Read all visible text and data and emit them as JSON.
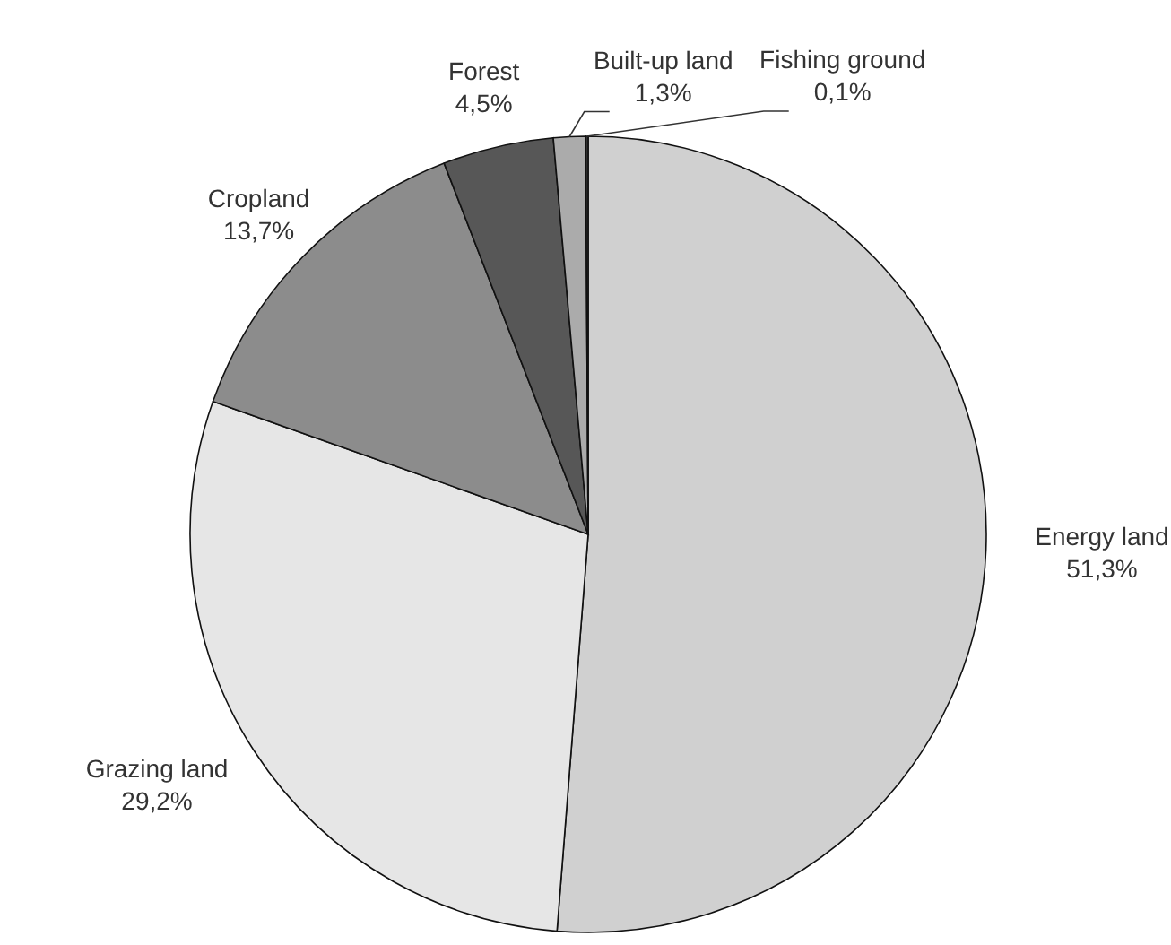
{
  "chart_data": {
    "type": "pie",
    "categories": [
      "Energy land",
      "Grazing land",
      "Cropland",
      "Forest",
      "Built-up land",
      "Fishing ground"
    ],
    "values": [
      51.3,
      29.2,
      13.7,
      4.5,
      1.3,
      0.1
    ],
    "value_labels": [
      "51,3%",
      "29,2%",
      "13,7%",
      "4,5%",
      "1,3%",
      "0,1%"
    ],
    "colors": [
      "#d0d0d0",
      "#e6e6e6",
      "#8c8c8c",
      "#575757",
      "#ababab",
      "#333333"
    ],
    "legend": false
  }
}
